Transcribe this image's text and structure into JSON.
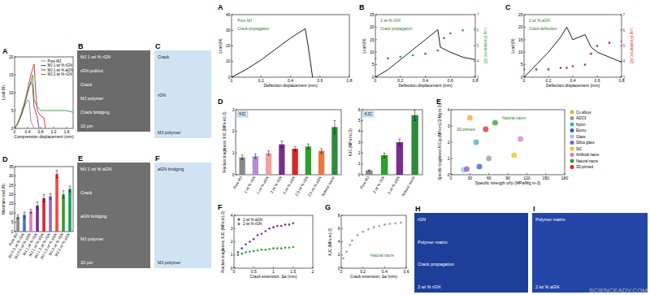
{
  "chart_data": [
    {
      "type": "line",
      "panel_label": "A",
      "x_label": "Compression displacement (mm)",
      "y_label": "Load (N)",
      "xlim": [
        0,
        1.8
      ],
      "xticks": [
        0,
        0.4,
        0.8,
        1.2,
        1.6
      ],
      "ylim": [
        0,
        20
      ],
      "yticks": [
        0,
        5,
        10,
        15,
        20
      ],
      "legend": "upper right",
      "series": [
        {
          "name": "Pure MJ",
          "color": "#888888",
          "x": [
            0,
            0.1,
            0.2,
            0.3,
            0.4,
            0.45,
            0.5,
            0.6
          ],
          "values": [
            0,
            1.5,
            3.5,
            6,
            8,
            7.5,
            2,
            0
          ]
        },
        {
          "name": "MJ 1 wt % rGN",
          "color": "#7b2d8e",
          "x": [
            0,
            0.1,
            0.2,
            0.3,
            0.4,
            0.5,
            0.55,
            0.6,
            0.7,
            0.75
          ],
          "values": [
            0,
            1.5,
            3.5,
            6.5,
            10,
            13,
            12,
            6,
            3,
            0
          ]
        },
        {
          "name": "MJ 1 wt % aGN",
          "color": "#d62728",
          "x": [
            0,
            0.1,
            0.2,
            0.3,
            0.4,
            0.5,
            0.6,
            0.65,
            0.7,
            0.8,
            0.9,
            0.95
          ],
          "values": [
            0,
            1.5,
            4,
            7,
            11,
            15,
            18,
            10,
            5,
            3.5,
            3,
            0
          ]
        },
        {
          "name": "MJ 2 wt % rGN",
          "color": "#2ca02c",
          "x": [
            0,
            0.1,
            0.2,
            0.3,
            0.4,
            0.5,
            0.55,
            0.6,
            0.7,
            0.8,
            1.0,
            1.2,
            1.4,
            1.6,
            1.8
          ],
          "values": [
            0,
            1.5,
            4,
            7,
            10,
            13,
            15,
            8,
            6,
            5,
            5,
            5,
            5,
            5,
            4.5
          ]
        }
      ]
    },
    {
      "type": "bar",
      "panel_label": "D",
      "y_label": "Maximum load (N)",
      "ylim": [
        0,
        35
      ],
      "yticks": [
        0,
        5,
        10,
        15,
        20,
        25,
        30,
        35
      ],
      "categories": [
        "Pure MJ",
        "MJ 0.5 wt % rGN",
        "MJ 0.5 wt % aGN",
        "MJ 1 wt % rGN",
        "MJ 1 wt % aGN",
        "MJ 1.5 wt % rGN",
        "MJ 1.5 wt % aGN",
        "MJ 2 wt % rGN",
        "MJ 2 wt % aGN"
      ],
      "values": [
        8,
        9,
        11,
        14,
        18,
        19,
        31,
        20,
        23
      ],
      "errors": [
        1,
        1.5,
        1,
        2,
        2,
        1.5,
        2,
        2,
        1.5
      ],
      "colors": [
        "#888888",
        "#4a6fd0",
        "#e377c2",
        "#7b2d8e",
        "#d62728",
        "#9467bd",
        "#ff4040",
        "#2ca02c",
        "#17a05d"
      ]
    },
    {
      "type": "line",
      "panel_label": "A",
      "x_label": "Deflection displacement (mm)",
      "y_label": "Load (N)",
      "xlim": [
        0,
        0.8
      ],
      "xticks": [
        0,
        0.2,
        0.4,
        0.6,
        0.8
      ],
      "ylim": [
        0,
        40
      ],
      "yticks": [
        0,
        10,
        20,
        30,
        40
      ],
      "annotations": [
        "Pure MJ",
        "Crack propagation"
      ],
      "series": [
        {
          "color": "#000000",
          "x": [
            0,
            0.1,
            0.2,
            0.3,
            0.4,
            0.5,
            0.52,
            0.55
          ],
          "values": [
            0,
            5,
            11,
            18,
            25,
            31,
            20,
            0
          ]
        }
      ]
    },
    {
      "type": "line",
      "panel_label": "B",
      "x_label": "Deflection displacement (mm)",
      "y_label": "Load (N)",
      "y2_label": "Log (Resistance) (Ω)",
      "xlim": [
        0,
        0.8
      ],
      "xticks": [
        0,
        0.2,
        0.4,
        0.6,
        0.8
      ],
      "ylim": [
        0,
        25
      ],
      "yticks": [
        0,
        5,
        10,
        15,
        20,
        25
      ],
      "y2lim": [
        3,
        7
      ],
      "y2ticks": [
        3,
        4,
        5,
        6,
        7
      ],
      "annotations": [
        "2 wt % rGN",
        "Crack propagation"
      ],
      "series": [
        {
          "color": "#000000",
          "x": [
            0,
            0.1,
            0.2,
            0.3,
            0.4,
            0.5,
            0.52,
            0.6,
            0.7,
            0.8
          ],
          "values": [
            0,
            3,
            7,
            11,
            15,
            19,
            12,
            10,
            8,
            7
          ]
        },
        {
          "type": "scatter",
          "marker": "circle",
          "axis": "y2",
          "color": "#2ca02c",
          "x": [
            0,
            0.1,
            0.2,
            0.3,
            0.4,
            0.5,
            0.55,
            0.6,
            0.7,
            0.8
          ],
          "values": [
            4.2,
            4.2,
            4.3,
            4.4,
            4.5,
            4.7,
            5.5,
            5.8,
            6,
            6.1
          ]
        }
      ]
    },
    {
      "type": "line",
      "panel_label": "C",
      "x_label": "Deflection displacement (mm)",
      "y_label": "Load (N)",
      "y2_label": "Log (Resistance) (Ω)",
      "xlim": [
        0,
        0.8
      ],
      "xticks": [
        0,
        0.2,
        0.4,
        0.6,
        0.8
      ],
      "ylim": [
        0,
        25
      ],
      "yticks": [
        0,
        5,
        10,
        15,
        20,
        25
      ],
      "y2lim": [
        3,
        7
      ],
      "y2ticks": [
        3,
        4,
        5,
        6,
        7
      ],
      "annotations": [
        "2 wt % aGN",
        "Crack deflection"
      ],
      "series": [
        {
          "color": "#000000",
          "x": [
            0,
            0.1,
            0.2,
            0.3,
            0.35,
            0.4,
            0.5,
            0.55,
            0.6,
            0.7,
            0.8
          ],
          "values": [
            0,
            5,
            10,
            16,
            20,
            15,
            17,
            12,
            10,
            8,
            6
          ]
        },
        {
          "type": "scatter",
          "marker": "circle",
          "axis": "y2",
          "color": "#d62728",
          "x": [
            0,
            0.1,
            0.2,
            0.3,
            0.35,
            0.4,
            0.5,
            0.55,
            0.6,
            0.7,
            0.8
          ],
          "values": [
            3.5,
            3.5,
            3.5,
            3.6,
            3.6,
            3.7,
            3.8,
            4.5,
            5,
            5.2,
            5.3
          ]
        }
      ]
    },
    {
      "type": "bar",
      "panel_label": "D",
      "title": "KIC",
      "y_label": "Fracture toughness, KIC (MPa m1/2)",
      "ylim": [
        0,
        3
      ],
      "yticks": [
        0,
        1,
        2,
        3
      ],
      "categories": [
        "Pure MJ",
        "1 wt % rGN",
        "1 wt % aGN",
        "2 wt % rGN",
        "2 wt % aGN",
        "2.5 wt % rGN",
        "2.5 wt % aGN",
        "Natural nacre"
      ],
      "values": [
        0.8,
        0.85,
        1.0,
        1.4,
        1.2,
        1.3,
        1.1,
        2.2
      ],
      "errors": [
        0.1,
        0.1,
        0.1,
        0.15,
        0.1,
        0.12,
        0.1,
        0.3
      ],
      "colors": [
        "#888888",
        "#b58bd6",
        "#f2a0a0",
        "#7b2d8e",
        "#d62728",
        "#2ca02c",
        "#e8783a",
        "#2e8b3e"
      ]
    },
    {
      "type": "bar",
      "title": "KJC",
      "y_label": "KJC (MPa m1/2)",
      "ylim": [
        0,
        6
      ],
      "yticks": [
        0,
        1,
        2,
        3,
        4,
        5,
        6
      ],
      "categories": [
        "Pure MJ",
        "2 wt % rGN",
        "2 wt % aGN",
        "Natural nacre"
      ],
      "values": [
        0.4,
        1.8,
        3.0,
        5.5
      ],
      "errors": [
        0.05,
        0.2,
        0.3,
        0.5
      ],
      "colors": [
        "#888888",
        "#2ca02c",
        "#7b2d8e",
        "#2e8b3e"
      ]
    },
    {
      "type": "scatter",
      "panel_label": "E",
      "x_label": "Specific strength σf/ρ (MPa/Mg m-3)",
      "y_label": "Specific toughness KIC/ρ (MPa m1/2/Mg m-3)",
      "xlim": [
        0,
        180
      ],
      "xticks": [
        0,
        30,
        60,
        90,
        120,
        150,
        180
      ],
      "ylim": [
        0,
        4
      ],
      "yticks": [
        0,
        1,
        2,
        3,
        4
      ],
      "legend": "right",
      "marker": "circle",
      "annotations": [
        "Natural nacre",
        "3D-printed"
      ],
      "series": [
        {
          "name": "Cu alloys",
          "color": "#f4a340",
          "x": [
            30
          ],
          "values": [
            3.5
          ]
        },
        {
          "name": "Al2O3",
          "color": "#999999",
          "x": [
            60
          ],
          "values": [
            1.0
          ]
        },
        {
          "name": "Nylon",
          "color": "#3bb2a8",
          "x": [
            40
          ],
          "values": [
            2.0
          ]
        },
        {
          "name": "Epoxy",
          "color": "#3060c0",
          "x": [
            45
          ],
          "values": [
            0.5
          ]
        },
        {
          "name": "Glass",
          "color": "#8fc7ef",
          "x": [
            20
          ],
          "values": [
            0.3
          ]
        },
        {
          "name": "Silica glass",
          "color": "#8a5cc0",
          "x": [
            25
          ],
          "values": [
            0.35
          ]
        },
        {
          "name": "SiC",
          "color": "#e6c619",
          "x": [
            100
          ],
          "values": [
            1.2
          ]
        },
        {
          "name": "Artificial nacre",
          "color": "#e377c2",
          "x": [
            110
          ],
          "values": [
            2.2
          ]
        },
        {
          "name": "Natural nacre",
          "color": "#2ca02c",
          "x": [
            70
          ],
          "values": [
            3.2
          ]
        },
        {
          "name": "3D-printed",
          "color": "#d62728",
          "x": [
            55
          ],
          "values": [
            2.8
          ]
        }
      ]
    },
    {
      "type": "scatter",
      "panel_label": "F",
      "x_label": "Crack extension, Δa (mm)",
      "y_label": "Fracture toughness, KJC (MPa m1/2)",
      "xlim": [
        0,
        2
      ],
      "xticks": [
        0,
        0.5,
        1,
        1.5,
        2
      ],
      "ylim": [
        0,
        4
      ],
      "yticks": [
        0,
        1,
        2,
        3,
        4
      ],
      "legend": "upper left",
      "marker": "circle",
      "series": [
        {
          "name": "2 wt % aGN",
          "color": "#7b2d8e",
          "x": [
            0.1,
            0.2,
            0.3,
            0.4,
            0.5,
            0.6,
            0.7,
            0.8,
            0.9,
            1.0,
            1.1,
            1.2,
            1.3,
            1.4,
            1.5
          ],
          "values": [
            1.2,
            1.5,
            1.8,
            2.0,
            2.2,
            2.5,
            2.6,
            2.8,
            3.0,
            3.1,
            3.2,
            3.2,
            3.3,
            3.3,
            3.4
          ]
        },
        {
          "name": "2 wt % rGN",
          "color": "#2ca02c",
          "x": [
            0.1,
            0.2,
            0.3,
            0.4,
            0.5,
            0.6,
            0.7,
            0.8,
            0.9,
            1.0,
            1.1,
            1.2,
            1.3,
            1.4,
            1.5
          ],
          "values": [
            1.0,
            1.1,
            1.2,
            1.25,
            1.3,
            1.35,
            1.4,
            1.4,
            1.45,
            1.5,
            1.5,
            1.5,
            1.55,
            1.55,
            1.6
          ]
        }
      ]
    },
    {
      "type": "scatter",
      "panel_label": "G",
      "x_label": "Crack extension, Δa (mm)",
      "y_label": "KJC (MPa m1/2)",
      "xlim": [
        0,
        0.6
      ],
      "xticks": [
        0,
        0.2,
        0.4,
        0.6
      ],
      "ylim": [
        0,
        8
      ],
      "yticks": [
        0,
        2,
        4,
        6,
        8
      ],
      "marker": "circle",
      "annotations": [
        "Natural nacre"
      ],
      "series": [
        {
          "color": "#9a9a9a",
          "x": [
            0.02,
            0.05,
            0.08,
            0.1,
            0.15,
            0.2,
            0.25,
            0.3,
            0.35,
            0.4,
            0.45,
            0.5,
            0.55
          ],
          "values": [
            1.5,
            2.5,
            3.5,
            4.2,
            5,
            5.5,
            5.9,
            6.2,
            6.4,
            6.6,
            6.7,
            6.8,
            6.9
          ]
        }
      ]
    }
  ],
  "images": [
    {
      "panel_label": "B",
      "texts": [
        "MJ 1 wt % rGN",
        "rGN pullout",
        "Crack",
        "MJ polymer",
        "Crack bridging",
        "10 μm"
      ]
    },
    {
      "panel_label": "C",
      "texts": [
        "Crack",
        "rGN",
        "MJ polymer"
      ]
    },
    {
      "panel_label": "E",
      "texts": [
        "MJ 1 wt % aGN",
        "Crack",
        "aGN bridging",
        "MJ polymer",
        "10 μm"
      ]
    },
    {
      "panel_label": "F",
      "texts": [
        "aGN bridging",
        "MJ polymer"
      ]
    },
    {
      "panel_label": "H",
      "texts": [
        "rGN",
        "Polymer matrix",
        "Crack propagation",
        "2 wt % rGN"
      ]
    },
    {
      "panel_label": "I",
      "texts": [
        "Polymer matrix",
        "2 wt % aGN"
      ]
    }
  ],
  "watermark": "SCIENCEADV.COM"
}
